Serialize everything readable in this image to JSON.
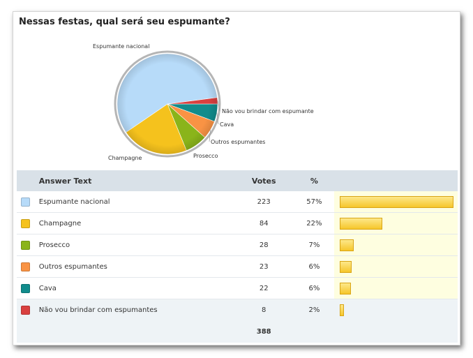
{
  "poll": {
    "title": "Nessas festas, qual será seu espumante?",
    "header": {
      "answer": "Answer Text",
      "votes": "Votes",
      "pct": "%"
    },
    "total": "388"
  },
  "chart_data": {
    "type": "pie",
    "title": "Nessas festas, qual será seu espumante?",
    "categories": [
      "Espumante nacional",
      "Champagne",
      "Prosecco",
      "Outros espumantes",
      "Cava",
      "Não vou brindar com espumantes"
    ],
    "values": [
      223,
      84,
      28,
      23,
      22,
      8
    ],
    "percent_labels": [
      "57%",
      "22%",
      "7%",
      "6%",
      "6%",
      "2%"
    ],
    "colors": [
      "#b7dbf9",
      "#f5c21d",
      "#8ab41a",
      "#f99344",
      "#118c8c",
      "#d9403f"
    ],
    "pie_labels": [
      "Espumante nacional",
      "Champagne",
      "Prosecco",
      "Outros espumantes",
      "Cava",
      "Não vou brindar com espumante"
    ]
  }
}
